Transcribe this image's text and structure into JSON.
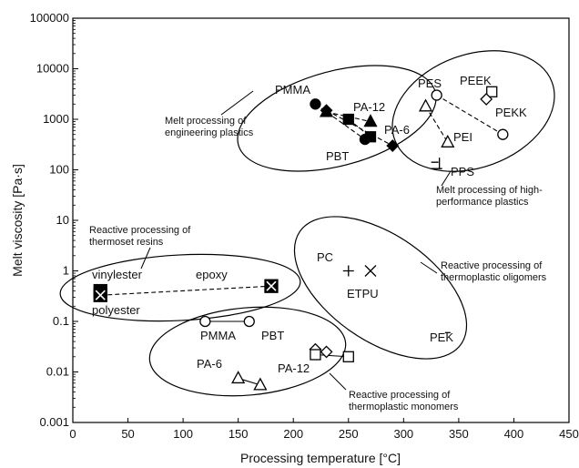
{
  "chart_data": {
    "type": "scatter",
    "xlabel": "Processing temperature [°C]",
    "ylabel": "Melt viscosity [Pa·s]",
    "xlim": [
      0,
      450
    ],
    "ylim": [
      0.001,
      100000
    ],
    "y_scale": "log",
    "grid": false,
    "x_ticks": [
      "0",
      "50",
      "100",
      "150",
      "200",
      "250",
      "300",
      "350",
      "400",
      "450"
    ],
    "y_ticks": [
      "0.001",
      "0.01",
      "0.1",
      "1",
      "10",
      "100",
      "1000",
      "10000",
      "100000"
    ],
    "series": [
      {
        "name": "PMMA",
        "marker": "circle-filled",
        "connect": true,
        "points": [
          {
            "x": 220,
            "y": 2000
          },
          {
            "x": 265,
            "y": 400
          }
        ]
      },
      {
        "name": "PA-12",
        "marker": "triangle-filled",
        "connect": true,
        "points": [
          {
            "x": 230,
            "y": 1400
          },
          {
            "x": 270,
            "y": 900
          }
        ]
      },
      {
        "name": "PA-6",
        "marker": "square-filled",
        "connect": true,
        "points": [
          {
            "x": 250,
            "y": 1000
          },
          {
            "x": 270,
            "y": 450
          }
        ]
      },
      {
        "name": "PBT",
        "marker": "diamond-filled",
        "connect": true,
        "points": [
          {
            "x": 230,
            "y": 1500
          },
          {
            "x": 290,
            "y": 300
          }
        ]
      },
      {
        "name": "PES",
        "marker": "circle-open",
        "connect": true,
        "points": [
          {
            "x": 330,
            "y": 3000
          },
          {
            "x": 390,
            "y": 500
          }
        ]
      },
      {
        "name": "PEI",
        "marker": "triangle-open",
        "connect": true,
        "points": [
          {
            "x": 320,
            "y": 1800
          },
          {
            "x": 340,
            "y": 350
          }
        ]
      },
      {
        "name": "PEEK",
        "marker": "square-open",
        "connect": false,
        "points": [
          {
            "x": 380,
            "y": 3500
          }
        ]
      },
      {
        "name": "PEKK",
        "marker": "diamond-open",
        "connect": false,
        "points": [
          {
            "x": 375,
            "y": 2500
          }
        ]
      },
      {
        "name": "PPS",
        "marker": "corner-plus",
        "connect": false,
        "points": [
          {
            "x": 330,
            "y": 130
          }
        ]
      },
      {
        "name": "vinylester",
        "marker": "square-filled-big",
        "connect": false,
        "points": [
          {
            "x": 25,
            "y": 0.4
          }
        ]
      },
      {
        "name": "epoxy",
        "marker": "square-x",
        "connect": true,
        "points": [
          {
            "x": 25,
            "y": 0.33
          },
          {
            "x": 180,
            "y": 0.5
          }
        ]
      },
      {
        "name": "PC",
        "marker": "plus",
        "connect": false,
        "points": [
          {
            "x": 250,
            "y": 1
          }
        ]
      },
      {
        "name": "ETPU",
        "marker": "x",
        "connect": false,
        "points": [
          {
            "x": 270,
            "y": 1
          }
        ]
      },
      {
        "name": "PEK",
        "marker": "dash",
        "connect": false,
        "points": [
          {
            "x": 340,
            "y": 0.06
          }
        ]
      },
      {
        "name": "PMMA",
        "marker": "circle-open",
        "connect": true,
        "points": [
          {
            "x": 120,
            "y": 0.1
          },
          {
            "x": 160,
            "y": 0.1
          }
        ]
      },
      {
        "name": "PBT",
        "marker": "diamond-open",
        "connect": false,
        "points": [
          {
            "x": 220,
            "y": 0.028
          },
          {
            "x": 230,
            "y": 0.025
          }
        ]
      },
      {
        "name": "PA-12",
        "marker": "square-open",
        "connect": true,
        "points": [
          {
            "x": 220,
            "y": 0.022
          },
          {
            "x": 250,
            "y": 0.02
          }
        ]
      },
      {
        "name": "PA-6",
        "marker": "triangle-open",
        "connect": true,
        "points": [
          {
            "x": 150,
            "y": 0.0075
          },
          {
            "x": 170,
            "y": 0.0055
          }
        ]
      }
    ],
    "regions": [
      {
        "label": "Melt processing of\nengineering plastics"
      },
      {
        "label": "Melt processing of high-\nperformance plastics"
      },
      {
        "label": "Reactive processing of\nthermoset resins"
      },
      {
        "label": "Reactive processing of\nthermoplastic oligomers"
      },
      {
        "label": "Reactive processing of\nthermoplastic monomers"
      }
    ],
    "labels": [
      "PMMA",
      "PA-12",
      "PA-6",
      "PBT",
      "PES",
      "PEEK",
      "PEKK",
      "PEI",
      "PPS",
      "vinylester",
      "epoxy",
      "polyester",
      "PC",
      "ETPU",
      "PEK",
      "PMMA",
      "PBT",
      "PA-6",
      "PA-12"
    ]
  }
}
